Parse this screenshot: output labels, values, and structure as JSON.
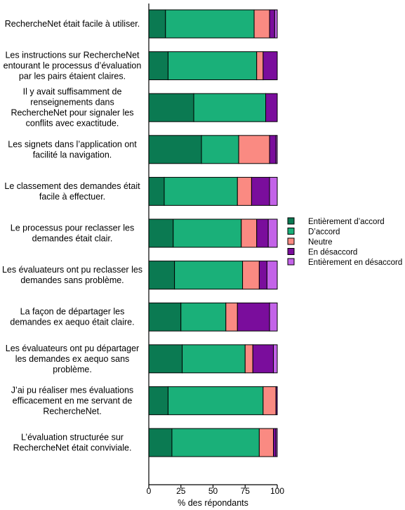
{
  "chart_data": {
    "type": "bar",
    "orientation": "horizontal",
    "stacked": true,
    "xlabel": "% des répondants",
    "xlim": [
      0,
      100
    ],
    "xticks": [
      "0",
      "25",
      "50",
      "75",
      "100"
    ],
    "legend_position": "right",
    "colors": {
      "Entièrement d’accord": "#0b7a52",
      "D’accord": "#1ab079",
      "Neutre": "#fa8a82",
      "En désaccord": "#7a0d9c",
      "Entièrement en désaccord": "#c363e8"
    },
    "categories": [
      [
        "RechercheNet était facile à utiliser."
      ],
      [
        "Les instructions sur RechercheNet",
        "entourant le processus d’évaluation",
        "par les pairs étaient claires."
      ],
      [
        "Il y avait suffisamment de",
        "renseignements dans",
        "RechercheNet pour signaler les",
        "conflits avec exactitude."
      ],
      [
        "Les signets dans l’application ont",
        "facilité la navigation."
      ],
      [
        "Le classement des demandes était",
        "facile à effectuer."
      ],
      [
        "Le processus pour reclasser les",
        "demandes était clair."
      ],
      [
        "Les évaluateurs ont pu reclasser les",
        "demandes sans problème."
      ],
      [
        "La façon de départager les",
        "demandes ex aequo était claire."
      ],
      [
        "Les évaluateurs ont pu départager",
        "les demandes ex aequo sans",
        "problème."
      ],
      [
        "J’ai pu réaliser mes évaluations",
        "efficacement en me servant de",
        "RechercheNet."
      ],
      [
        "L’évaluation structurée sur",
        "RechercheNet était conviviale."
      ]
    ],
    "series": [
      {
        "name": "Entièrement d’accord",
        "values": [
          13,
          15,
          35,
          41,
          12,
          19,
          20,
          25,
          26,
          15,
          18
        ]
      },
      {
        "name": "D’accord",
        "values": [
          69,
          69,
          56,
          29,
          57,
          53,
          53,
          35,
          49,
          74,
          68
        ]
      },
      {
        "name": "Neutre",
        "values": [
          12,
          5,
          0,
          24,
          11,
          12,
          13,
          9,
          6,
          10,
          11
        ]
      },
      {
        "name": "En désaccord",
        "values": [
          4,
          11,
          9,
          5,
          14,
          9,
          6,
          25,
          16,
          1,
          2
        ]
      },
      {
        "name": "Entièrement en désaccord",
        "values": [
          2,
          0,
          0,
          1,
          6,
          7,
          8,
          6,
          3,
          0,
          1
        ]
      }
    ]
  }
}
